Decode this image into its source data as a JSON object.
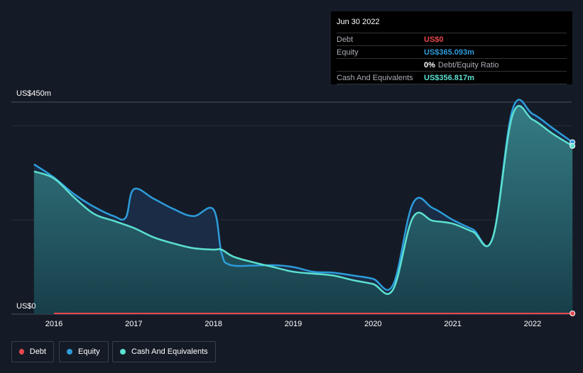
{
  "chart_data": {
    "type": "area",
    "title": "",
    "y_unit": "US$ millions",
    "ylim": [
      0,
      450
    ],
    "y_top_label": "US$450m",
    "y_bottom_label": "US$0",
    "x_ticks": [
      "2016",
      "2017",
      "2018",
      "2019",
      "2020",
      "2021",
      "2022"
    ],
    "x_range": [
      2015.75,
      2022.5
    ],
    "gridlines": [
      0,
      200,
      400,
      450
    ],
    "series": [
      {
        "name": "Debt",
        "color": "#e5484d",
        "x": [
          2016.0,
          2022.5
        ],
        "values": [
          0,
          0
        ]
      },
      {
        "name": "Equity",
        "color": "#2d9cdb",
        "x": [
          2015.75,
          2016.0,
          2016.25,
          2016.5,
          2016.75,
          2016.9,
          2017.0,
          2017.25,
          2017.5,
          2017.75,
          2018.0,
          2018.1,
          2018.2,
          2018.5,
          2018.75,
          2019.0,
          2019.25,
          2019.5,
          2019.75,
          2020.0,
          2020.25,
          2020.5,
          2020.75,
          2021.0,
          2021.25,
          2021.5,
          2021.75,
          2022.0,
          2022.25,
          2022.5
        ],
        "values": [
          318,
          290,
          255,
          228,
          208,
          205,
          265,
          245,
          223,
          208,
          222,
          130,
          105,
          103,
          104,
          100,
          90,
          88,
          82,
          75,
          62,
          235,
          225,
          200,
          180,
          162,
          435,
          425,
          395,
          365
        ]
      },
      {
        "name": "Cash And Equivalents",
        "color": "#5ce0d0",
        "x": [
          2015.75,
          2016.0,
          2016.25,
          2016.5,
          2016.75,
          2017.0,
          2017.25,
          2017.5,
          2017.75,
          2018.0,
          2018.1,
          2018.25,
          2018.5,
          2018.75,
          2019.0,
          2019.25,
          2019.5,
          2019.75,
          2020.0,
          2020.25,
          2020.5,
          2020.75,
          2021.0,
          2021.25,
          2021.5,
          2021.75,
          2022.0,
          2022.25,
          2022.5
        ],
        "values": [
          303,
          288,
          248,
          213,
          198,
          183,
          163,
          150,
          140,
          137,
          137,
          122,
          110,
          100,
          90,
          86,
          82,
          72,
          64,
          52,
          205,
          198,
          192,
          175,
          162,
          423,
          413,
          383,
          357
        ]
      }
    ]
  },
  "tooltip": {
    "date": "Jun 30 2022",
    "rows": [
      {
        "label": "Debt",
        "value": "US$0",
        "color": "#e5484d"
      },
      {
        "label": "Equity",
        "value": "US$365.093m",
        "color": "#2d9cdb"
      },
      {
        "label": "",
        "value": "0%",
        "suffix": "Debt/Equity Ratio",
        "color": "#ffffff"
      },
      {
        "label": "Cash And Equivalents",
        "value": "US$356.817m",
        "color": "#5ce0d0"
      }
    ]
  },
  "legend": [
    {
      "label": "Debt",
      "color": "#e5484d"
    },
    {
      "label": "Equity",
      "color": "#2d9cdb"
    },
    {
      "label": "Cash And Equivalents",
      "color": "#5ce0d0"
    }
  ]
}
